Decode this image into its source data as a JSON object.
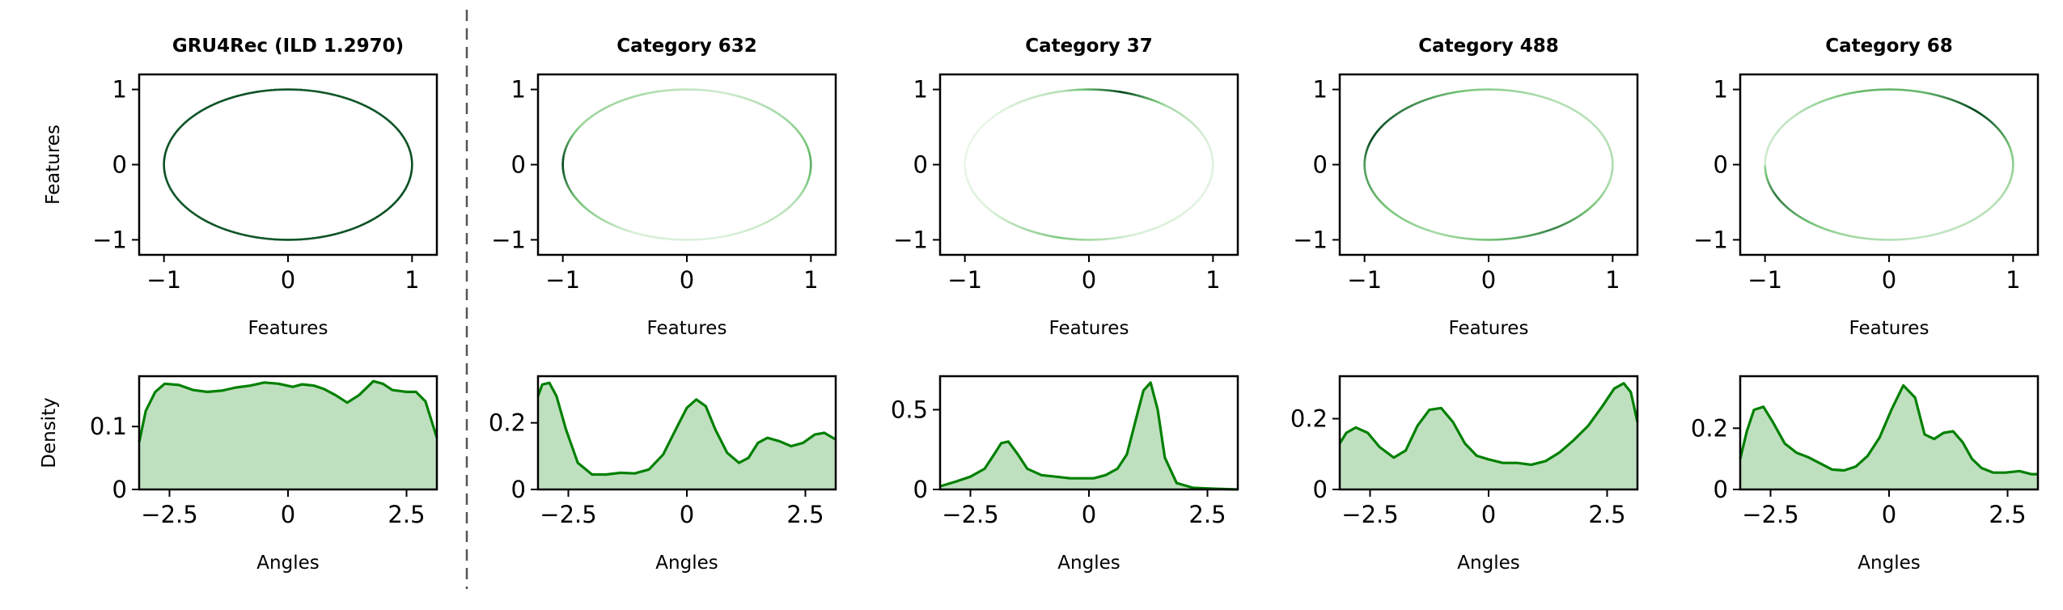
{
  "colors": {
    "density_line": "#008000",
    "density_fill": "#bfe0bf",
    "circle_low": "#f7fcf5",
    "circle_high": "#00441b",
    "divider": "#555555"
  },
  "chart_data": [
    {
      "type": "scatter",
      "panel": "circle",
      "title": "GRU4Rec (ILD 1.2970)",
      "xlabel": "Features",
      "ylabel": "Features",
      "xlim": [
        -1.2,
        1.2
      ],
      "ylim": [
        -1.2,
        1.2
      ],
      "xticks": [
        -1,
        0,
        1
      ],
      "yticks": [
        -1,
        0,
        1
      ],
      "shading": "uniform dark green along the whole unit circle",
      "density_intensity_by_angle": {
        "angles": [
          -3.14,
          -2.5,
          -1.8,
          -1.0,
          -0.4,
          0.2,
          0.8,
          1.5,
          2.0,
          2.5,
          3.14
        ],
        "intensity": [
          0.95,
          0.92,
          0.93,
          0.94,
          0.95,
          0.94,
          0.93,
          0.92,
          0.95,
          0.93,
          0.95
        ]
      }
    },
    {
      "type": "scatter",
      "panel": "circle",
      "title": "Category 632",
      "xlabel": "Features",
      "ylabel": "",
      "xlim": [
        -1.2,
        1.2
      ],
      "ylim": [
        -1.2,
        1.2
      ],
      "xticks": [
        -1,
        0,
        1
      ],
      "yticks": [
        -1,
        0,
        1
      ],
      "density_intensity_by_angle": {
        "angles": [
          -3.14,
          -2.7,
          -2.0,
          -1.3,
          -0.5,
          0.0,
          0.6,
          1.3,
          2.0,
          2.6,
          3.14
        ],
        "intensity": [
          1.0,
          0.55,
          0.12,
          0.1,
          0.25,
          0.6,
          0.35,
          0.15,
          0.3,
          0.35,
          1.0
        ]
      }
    },
    {
      "type": "scatter",
      "panel": "circle",
      "title": "Category 37",
      "xlabel": "Features",
      "ylabel": "",
      "xlim": [
        -1.2,
        1.2
      ],
      "ylim": [
        -1.2,
        1.2
      ],
      "xticks": [
        -1,
        0,
        1
      ],
      "yticks": [
        -1,
        0,
        1
      ],
      "density_intensity_by_angle": {
        "angles": [
          -3.14,
          -2.5,
          -1.8,
          -1.2,
          -0.5,
          0.3,
          0.9,
          1.3,
          1.8,
          2.5,
          3.14
        ],
        "intensity": [
          0.05,
          0.1,
          0.45,
          0.12,
          0.08,
          0.1,
          0.3,
          1.0,
          0.25,
          0.05,
          0.05
        ]
      }
    },
    {
      "type": "scatter",
      "panel": "circle",
      "title": "Category 488",
      "xlabel": "Features",
      "ylabel": "",
      "xlim": [
        -1.2,
        1.2
      ],
      "ylim": [
        -1.2,
        1.2
      ],
      "xticks": [
        -1,
        0,
        1
      ],
      "yticks": [
        -1,
        0,
        1
      ],
      "density_intensity_by_angle": {
        "angles": [
          -3.14,
          -2.8,
          -2.0,
          -1.0,
          -0.3,
          0.3,
          1.0,
          1.6,
          2.2,
          2.8,
          3.14
        ],
        "intensity": [
          0.65,
          0.6,
          0.3,
          0.75,
          0.3,
          0.25,
          0.25,
          0.4,
          0.7,
          1.0,
          0.65
        ]
      }
    },
    {
      "type": "scatter",
      "panel": "circle",
      "title": "Category 68",
      "xlabel": "Features",
      "ylabel": "",
      "xlim": [
        -1.2,
        1.2
      ],
      "ylim": [
        -1.2,
        1.2
      ],
      "xticks": [
        -1,
        0,
        1
      ],
      "yticks": [
        -1,
        0,
        1
      ],
      "density_intensity_by_angle": {
        "angles": [
          -3.14,
          -2.7,
          -2.0,
          -1.3,
          -0.5,
          0.2,
          0.8,
          1.3,
          1.8,
          2.5,
          3.14
        ],
        "intensity": [
          0.35,
          0.8,
          0.35,
          0.2,
          0.25,
          0.45,
          1.0,
          0.55,
          0.55,
          0.2,
          0.15
        ]
      }
    },
    {
      "type": "area",
      "panel": "density",
      "xlabel": "Angles",
      "ylabel": "Density",
      "xlim": [
        -3.14,
        3.14
      ],
      "ylim": [
        0,
        0.18
      ],
      "xticks": [
        -2.5,
        0.0,
        2.5
      ],
      "yticks": [
        0.0,
        0.1
      ],
      "x": [
        -3.14,
        -3.0,
        -2.8,
        -2.6,
        -2.3,
        -2.0,
        -1.7,
        -1.4,
        -1.1,
        -0.8,
        -0.5,
        -0.2,
        0.1,
        0.3,
        0.55,
        0.75,
        1.0,
        1.25,
        1.5,
        1.8,
        2.0,
        2.2,
        2.5,
        2.7,
        2.9,
        3.14
      ],
      "y": [
        0.075,
        0.125,
        0.155,
        0.168,
        0.166,
        0.158,
        0.155,
        0.157,
        0.162,
        0.165,
        0.17,
        0.168,
        0.163,
        0.167,
        0.165,
        0.16,
        0.15,
        0.138,
        0.15,
        0.172,
        0.168,
        0.158,
        0.155,
        0.155,
        0.14,
        0.082
      ]
    },
    {
      "type": "area",
      "panel": "density",
      "xlabel": "Angles",
      "ylabel": "",
      "xlim": [
        -3.14,
        3.14
      ],
      "ylim": [
        0,
        0.34
      ],
      "xticks": [
        -2.5,
        0.0,
        2.5
      ],
      "yticks": [
        0.0,
        0.2
      ],
      "x": [
        -3.14,
        -3.05,
        -2.9,
        -2.75,
        -2.55,
        -2.3,
        -2.0,
        -1.7,
        -1.4,
        -1.1,
        -0.8,
        -0.5,
        -0.2,
        0.0,
        0.2,
        0.4,
        0.6,
        0.85,
        1.1,
        1.3,
        1.5,
        1.7,
        1.95,
        2.2,
        2.45,
        2.7,
        2.9,
        3.14
      ],
      "y": [
        0.28,
        0.315,
        0.32,
        0.28,
        0.18,
        0.08,
        0.045,
        0.045,
        0.05,
        0.048,
        0.06,
        0.105,
        0.19,
        0.245,
        0.27,
        0.25,
        0.18,
        0.11,
        0.08,
        0.095,
        0.14,
        0.155,
        0.145,
        0.13,
        0.14,
        0.165,
        0.17,
        0.15
      ]
    },
    {
      "type": "area",
      "panel": "density",
      "xlabel": "Angles",
      "ylabel": "",
      "xlim": [
        -3.14,
        3.14
      ],
      "ylim": [
        0,
        0.71
      ],
      "xticks": [
        -2.5,
        0.0,
        2.5
      ],
      "yticks": [
        0.0,
        0.5
      ],
      "x": [
        -3.14,
        -2.8,
        -2.5,
        -2.2,
        -2.0,
        -1.85,
        -1.7,
        -1.5,
        -1.3,
        -1.0,
        -0.7,
        -0.4,
        -0.1,
        0.1,
        0.35,
        0.6,
        0.8,
        1.0,
        1.15,
        1.3,
        1.45,
        1.6,
        1.85,
        2.2,
        2.6,
        3.14
      ],
      "y": [
        0.02,
        0.05,
        0.08,
        0.13,
        0.22,
        0.29,
        0.3,
        0.22,
        0.13,
        0.09,
        0.08,
        0.07,
        0.07,
        0.07,
        0.09,
        0.13,
        0.22,
        0.45,
        0.62,
        0.67,
        0.5,
        0.2,
        0.04,
        0.01,
        0.005,
        0.0
      ]
    },
    {
      "type": "area",
      "panel": "density",
      "xlabel": "Angles",
      "ylabel": "",
      "xlim": [
        -3.14,
        3.14
      ],
      "ylim": [
        0,
        0.32
      ],
      "xticks": [
        -2.5,
        0.0,
        2.5
      ],
      "yticks": [
        0.0,
        0.2
      ],
      "x": [
        -3.14,
        -3.0,
        -2.8,
        -2.55,
        -2.3,
        -2.0,
        -1.75,
        -1.5,
        -1.25,
        -1.0,
        -0.75,
        -0.5,
        -0.25,
        0.0,
        0.3,
        0.6,
        0.9,
        1.2,
        1.5,
        1.8,
        2.1,
        2.4,
        2.65,
        2.85,
        3.0,
        3.14
      ],
      "y": [
        0.13,
        0.16,
        0.175,
        0.16,
        0.12,
        0.09,
        0.11,
        0.18,
        0.225,
        0.23,
        0.19,
        0.13,
        0.095,
        0.085,
        0.075,
        0.075,
        0.07,
        0.08,
        0.105,
        0.14,
        0.18,
        0.235,
        0.285,
        0.3,
        0.275,
        0.19
      ]
    },
    {
      "type": "area",
      "panel": "density",
      "xlabel": "Angles",
      "ylabel": "",
      "xlim": [
        -3.14,
        3.14
      ],
      "ylim": [
        0,
        0.37
      ],
      "xticks": [
        -2.5,
        0.0,
        2.5
      ],
      "yticks": [
        0.0,
        0.2
      ],
      "x": [
        -3.14,
        -3.0,
        -2.85,
        -2.65,
        -2.45,
        -2.2,
        -1.95,
        -1.7,
        -1.45,
        -1.2,
        -0.95,
        -0.7,
        -0.45,
        -0.2,
        0.05,
        0.3,
        0.55,
        0.75,
        0.95,
        1.15,
        1.35,
        1.55,
        1.75,
        1.95,
        2.2,
        2.45,
        2.75,
        3.0,
        3.14
      ],
      "y": [
        0.1,
        0.19,
        0.26,
        0.27,
        0.22,
        0.15,
        0.12,
        0.105,
        0.085,
        0.065,
        0.062,
        0.075,
        0.11,
        0.17,
        0.26,
        0.34,
        0.3,
        0.18,
        0.165,
        0.185,
        0.19,
        0.155,
        0.1,
        0.07,
        0.055,
        0.055,
        0.06,
        0.05,
        0.05
      ]
    }
  ]
}
